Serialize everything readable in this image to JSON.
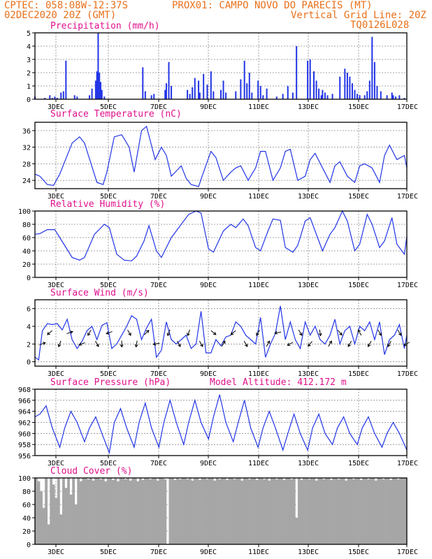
{
  "header": {
    "line1_left": "CPTEC:  058:08W-12:37S",
    "line1_right": "PROX01: CAMPO NOVO DO PARECIS (MT)",
    "line2_left": "02DEC2020 20Z (GMT)",
    "line2_right": "Vertical Grid Line: 20Z",
    "code": "TQ0126L028"
  },
  "colors": {
    "header": "#e8701a",
    "title": "#e0108c",
    "line": "#2235e6",
    "cloud": "#a6a6a6"
  },
  "chart_data": [
    {
      "type": "bar",
      "title": "Precipitation (mm/h)",
      "ylim": [
        0,
        5
      ],
      "yticks": [
        0,
        1,
        2,
        3,
        4,
        5
      ],
      "xticks": [
        "3DEC",
        "5DEC",
        "7DEC",
        "9DEC",
        "11DEC",
        "13DEC",
        "15DEC",
        "17DEC"
      ],
      "x_unit": "days since 02DEC2020 20Z",
      "x": [
        2.0,
        2.4,
        2.6,
        2.7,
        2.8,
        2.9,
        3.05,
        3.15,
        3.25,
        3.6,
        3.7,
        4.2,
        4.3,
        4.45,
        4.5,
        4.55,
        4.6,
        4.65,
        4.7,
        4.8,
        6.35,
        6.45,
        6.7,
        6.8,
        7.25,
        7.3,
        7.4,
        7.5,
        8.15,
        8.25,
        8.35,
        8.45,
        8.6,
        8.65,
        8.8,
        8.95,
        9.1,
        9.2,
        9.5,
        9.6,
        9.7,
        10.1,
        10.3,
        10.45,
        10.55,
        10.65,
        10.75,
        11.0,
        11.1,
        11.2,
        11.35,
        11.75,
        12.0,
        12.2,
        12.4,
        12.55,
        13.0,
        13.1,
        13.25,
        13.35,
        13.45,
        13.55,
        13.6,
        13.7,
        13.8,
        14.0,
        14.3,
        14.5,
        14.6,
        14.7,
        14.8,
        14.9,
        15.0,
        15.1,
        15.3,
        15.4,
        15.5,
        15.6,
        15.7,
        15.8,
        15.95,
        16.2,
        16.4,
        16.45,
        16.55,
        16.7,
        16.9
      ],
      "values": [
        0.2,
        0.1,
        0.3,
        0.1,
        0.2,
        0.1,
        0.5,
        0.6,
        2.9,
        0.3,
        0.2,
        0.3,
        0.8,
        1.4,
        2.1,
        5.0,
        2.0,
        1.3,
        0.7,
        0.2,
        2.4,
        0.6,
        0.3,
        0.4,
        0.7,
        1.2,
        2.8,
        1.0,
        0.7,
        0.4,
        0.9,
        1.6,
        1.4,
        0.5,
        1.9,
        1.1,
        2.1,
        0.6,
        0.7,
        1.4,
        0.5,
        0.6,
        1.5,
        2.9,
        1.2,
        2.0,
        0.5,
        1.4,
        1.0,
        0.3,
        0.8,
        0.2,
        0.4,
        1.0,
        0.5,
        4.0,
        2.9,
        3.0,
        2.1,
        1.4,
        0.8,
        0.3,
        0.7,
        0.5,
        0.3,
        0.4,
        1.7,
        2.3,
        2.0,
        1.7,
        1.2,
        0.7,
        0.4,
        0.3,
        0.3,
        0.6,
        1.4,
        4.7,
        2.8,
        1.0,
        0.6,
        0.3,
        0.5,
        0.3,
        0.2,
        0.3,
        0.1
      ]
    },
    {
      "type": "line",
      "title": "Surface Temperature (nC)",
      "ylim": [
        22,
        38
      ],
      "yticks": [
        24,
        28,
        32,
        36
      ],
      "xticks": [
        "3DEC",
        "5DEC",
        "7DEC",
        "9DEC",
        "11DEC",
        "13DEC",
        "15DEC",
        "17DEC"
      ],
      "x": [
        2.0,
        2.2,
        2.5,
        2.75,
        3.0,
        3.5,
        3.8,
        4.0,
        4.5,
        4.75,
        4.9,
        5.2,
        5.5,
        5.8,
        6.0,
        6.3,
        6.5,
        6.85,
        7.1,
        7.3,
        7.5,
        7.9,
        8.1,
        8.3,
        8.6,
        8.8,
        9.1,
        9.3,
        9.6,
        9.9,
        10.1,
        10.3,
        10.6,
        10.9,
        11.1,
        11.3,
        11.6,
        11.9,
        12.1,
        12.3,
        12.6,
        12.9,
        13.1,
        13.3,
        13.6,
        13.9,
        14.1,
        14.3,
        14.6,
        14.9,
        15.1,
        15.3,
        15.6,
        15.9,
        16.1,
        16.3,
        16.6,
        16.9,
        17.0
      ],
      "values": [
        25.5,
        25.0,
        23.0,
        22.8,
        25.5,
        33.0,
        34.5,
        33.0,
        23.5,
        23.0,
        26.0,
        34.5,
        35.0,
        32.0,
        26.0,
        36.0,
        37.0,
        29.0,
        32.0,
        30.0,
        25.0,
        27.5,
        24.5,
        23.0,
        22.5,
        26.0,
        31.0,
        29.5,
        24.0,
        26.0,
        27.0,
        27.5,
        24.0,
        27.0,
        31.0,
        31.0,
        24.0,
        27.0,
        31.0,
        31.5,
        24.0,
        25.0,
        29.0,
        30.5,
        27.0,
        23.5,
        27.5,
        28.5,
        25.0,
        23.5,
        27.5,
        28.0,
        27.0,
        23.5,
        30.0,
        32.5,
        29.0,
        30.0,
        27.0
      ]
    },
    {
      "type": "line",
      "title": "Relative Humidity (%)",
      "ylim": [
        0,
        100
      ],
      "yticks": [
        0,
        20,
        40,
        60,
        80,
        100
      ],
      "xticks": [
        "3DEC",
        "5DEC",
        "7DEC",
        "9DEC",
        "11DEC",
        "13DEC",
        "15DEC",
        "17DEC"
      ],
      "x": [
        2.0,
        2.2,
        2.5,
        2.8,
        3.0,
        3.5,
        3.8,
        4.0,
        4.4,
        4.8,
        5.0,
        5.3,
        5.6,
        5.9,
        6.1,
        6.4,
        6.6,
        6.9,
        7.1,
        7.5,
        7.9,
        8.2,
        8.5,
        8.7,
        9.0,
        9.2,
        9.6,
        9.9,
        10.1,
        10.4,
        10.6,
        10.9,
        11.1,
        11.4,
        11.6,
        11.9,
        12.1,
        12.4,
        12.6,
        12.9,
        13.1,
        13.4,
        13.6,
        13.9,
        14.1,
        14.4,
        14.6,
        14.9,
        15.1,
        15.4,
        15.6,
        15.9,
        16.1,
        16.4,
        16.6,
        16.9,
        17.0
      ],
      "values": [
        65,
        66,
        72,
        72,
        60,
        30,
        26,
        30,
        65,
        80,
        75,
        35,
        26,
        25,
        32,
        55,
        78,
        40,
        30,
        60,
        80,
        95,
        100,
        97,
        43,
        38,
        70,
        80,
        75,
        88,
        78,
        45,
        40,
        70,
        88,
        86,
        45,
        38,
        48,
        85,
        90,
        60,
        40,
        65,
        75,
        100,
        85,
        40,
        50,
        95,
        80,
        45,
        55,
        90,
        50,
        35,
        62
      ]
    },
    {
      "type": "line",
      "title": "Surface Wind (m/s)",
      "ylim": [
        -0.5,
        7
      ],
      "yticks": [
        0,
        2,
        4,
        6
      ],
      "xticks": [
        "3DEC",
        "5DEC",
        "7DEC",
        "9DEC",
        "11DEC",
        "13DEC",
        "15DEC",
        "17DEC"
      ],
      "x": [
        2.0,
        2.15,
        2.3,
        2.5,
        2.7,
        2.9,
        3.1,
        3.3,
        3.5,
        3.7,
        3.9,
        4.1,
        4.3,
        4.5,
        4.7,
        4.9,
        5.1,
        5.3,
        5.5,
        5.7,
        5.9,
        6.1,
        6.3,
        6.5,
        6.7,
        6.9,
        7.1,
        7.3,
        7.5,
        7.7,
        7.9,
        8.1,
        8.3,
        8.5,
        8.7,
        8.9,
        9.1,
        9.3,
        9.5,
        9.7,
        9.9,
        10.1,
        10.3,
        10.5,
        10.7,
        10.9,
        11.1,
        11.3,
        11.5,
        11.7,
        11.9,
        12.1,
        12.3,
        12.5,
        12.7,
        12.9,
        13.1,
        13.3,
        13.5,
        13.7,
        13.9,
        14.1,
        14.3,
        14.5,
        14.7,
        14.9,
        15.1,
        15.3,
        15.5,
        15.7,
        15.9,
        16.1,
        16.3,
        16.5,
        16.7,
        16.9,
        17.0
      ],
      "values": [
        0.5,
        0.2,
        3.5,
        4.3,
        4.2,
        4.3,
        3.6,
        4.8,
        2.5,
        1.5,
        2.3,
        3.5,
        4.0,
        2.5,
        4.1,
        4.4,
        1.5,
        2.0,
        3.0,
        4.0,
        5.2,
        4.8,
        2.5,
        3.8,
        4.8,
        0.5,
        1.3,
        4.5,
        2.5,
        2.0,
        2.5,
        3.0,
        1.5,
        2.0,
        5.7,
        1.0,
        1.0,
        2.5,
        1.8,
        2.8,
        3.0,
        4.5,
        4.0,
        3.0,
        2.5,
        2.0,
        5.0,
        0.5,
        2.0,
        3.2,
        6.3,
        2.5,
        4.5,
        2.5,
        1.5,
        4.5,
        3.0,
        4.0,
        2.5,
        2.0,
        3.0,
        4.8,
        2.0,
        3.5,
        4.0,
        2.0,
        4.0,
        3.5,
        4.5,
        2.5,
        4.5,
        0.8,
        2.5,
        3.0,
        4.2,
        1.5,
        3.0
      ],
      "arrows_x": [
        2.3,
        2.6,
        3.0,
        3.4,
        3.9,
        4.2,
        4.5,
        5.0,
        5.5,
        5.8,
        6.1,
        6.5,
        6.9,
        7.4,
        7.8,
        8.2,
        8.7,
        9.2,
        9.6,
        10.0,
        10.5,
        11.0,
        11.4,
        11.8,
        12.3,
        12.7,
        13.1,
        13.5,
        13.9,
        14.3,
        14.7,
        15.1,
        15.5,
        15.9,
        16.3,
        16.7,
        17.0
      ],
      "arrows_deg": [
        20,
        220,
        250,
        20,
        200,
        240,
        300,
        200,
        270,
        300,
        260,
        45,
        190,
        250,
        300,
        250,
        300,
        320,
        60,
        220,
        300,
        240,
        60,
        190,
        210,
        300,
        230,
        280,
        60,
        310,
        240,
        120,
        240,
        300,
        240,
        300,
        210
      ]
    },
    {
      "type": "line",
      "title": "Surface Pressure (hPa)",
      "annotation": "Model Altitude: 412.172 m",
      "ylim": [
        956,
        968
      ],
      "yticks": [
        956,
        958,
        960,
        962,
        964,
        966,
        968
      ],
      "xticks": [
        "3DEC",
        "5DEC",
        "7DEC",
        "9DEC",
        "11DEC",
        "13DEC",
        "15DEC",
        "17DEC"
      ],
      "x": [
        2.0,
        2.2,
        2.45,
        2.7,
        3.0,
        3.2,
        3.45,
        3.7,
        4.0,
        4.2,
        4.45,
        4.7,
        5.0,
        5.2,
        5.45,
        5.7,
        6.0,
        6.2,
        6.45,
        6.7,
        7.0,
        7.2,
        7.45,
        7.7,
        8.0,
        8.2,
        8.45,
        8.7,
        9.0,
        9.2,
        9.45,
        9.7,
        10.0,
        10.2,
        10.45,
        10.7,
        11.0,
        11.2,
        11.45,
        11.7,
        12.0,
        12.2,
        12.45,
        12.7,
        13.0,
        13.2,
        13.45,
        13.7,
        14.0,
        14.2,
        14.45,
        14.7,
        15.0,
        15.2,
        15.45,
        15.7,
        16.0,
        16.2,
        16.45,
        16.7,
        17.0
      ],
      "values": [
        963,
        963.5,
        965,
        961,
        957.5,
        961,
        964,
        962,
        958.5,
        961,
        963,
        960,
        956.5,
        962,
        964.5,
        961,
        957.5,
        962,
        965.5,
        961,
        957.5,
        962,
        966,
        962,
        958,
        962,
        966,
        962,
        959,
        963,
        967,
        962,
        958.5,
        962,
        966,
        961,
        957.5,
        961,
        964,
        961,
        957,
        960,
        963.5,
        960,
        957,
        961,
        963.5,
        960,
        958,
        961,
        963,
        960,
        958,
        961,
        963,
        960,
        957.5,
        960,
        962,
        960,
        957
      ]
    },
    {
      "type": "bar",
      "title": "Cloud Cover (%)",
      "ylim": [
        0,
        100
      ],
      "yticks": [
        0,
        20,
        40,
        60,
        80,
        100
      ],
      "xticks": [
        "3DEC",
        "5DEC",
        "7DEC",
        "9DEC",
        "11DEC",
        "13DEC",
        "15DEC",
        "17DEC"
      ],
      "x_start": 2.0,
      "x_step": 0.1,
      "values": [
        100,
        95,
        80,
        55,
        100,
        30,
        100,
        90,
        70,
        100,
        45,
        100,
        85,
        100,
        75,
        100,
        60,
        100,
        95,
        100,
        100,
        98,
        100,
        96,
        100,
        100,
        98,
        100,
        95,
        100,
        100,
        97,
        100,
        95,
        100,
        100,
        98,
        100,
        96,
        100,
        100,
        95,
        100,
        97,
        100,
        100,
        98,
        100,
        100,
        96,
        100,
        100,
        98,
        0,
        100,
        100,
        97,
        100,
        98,
        100,
        100,
        98,
        100,
        96,
        100,
        100,
        97,
        100,
        100,
        98,
        100,
        100,
        96,
        100,
        98,
        100,
        100,
        97,
        100,
        100,
        98,
        100,
        100,
        96,
        100,
        100,
        98,
        100,
        100,
        97,
        100,
        100,
        98,
        100,
        96,
        100,
        100,
        98,
        100,
        100,
        97,
        100,
        100,
        98,
        100,
        40,
        100,
        97,
        100,
        100,
        98,
        100,
        100,
        96,
        100,
        100,
        98,
        100,
        100,
        97,
        100,
        100,
        98,
        100,
        100,
        96,
        100,
        100,
        98,
        100,
        100,
        97,
        100,
        100,
        98,
        100,
        100,
        96,
        100,
        100,
        98,
        100,
        100,
        97,
        100,
        100,
        98,
        100,
        100,
        100,
        96
      ]
    }
  ]
}
